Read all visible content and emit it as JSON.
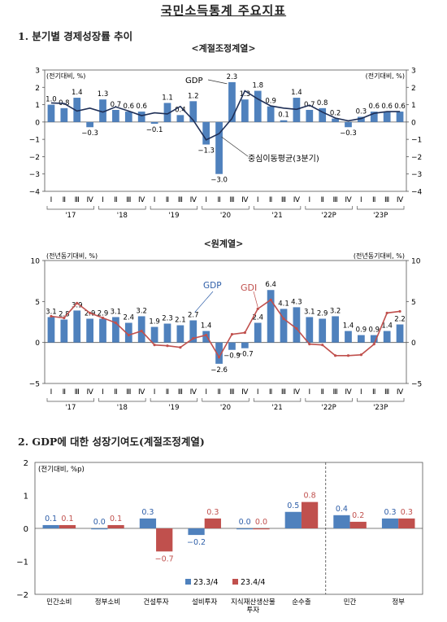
{
  "title": "국민소득통계 주요지표",
  "section1": "1. 분기별 경제성장률 추이",
  "section2": "2. GDP에 대한 성장기여도(계절조정계열)",
  "colors": {
    "bar": "#4f81bd",
    "bar2": "#c0504d",
    "line": "#1f2f56",
    "gdi": "#c0504d"
  },
  "chart_data": [
    {
      "type": "bar",
      "title": "<계절조정계열>",
      "ylabel_left": "(전기대비, %)",
      "ylabel_right": "(전기대비, %)",
      "ylim": [
        -4,
        3
      ],
      "yticks": [
        3,
        2,
        1,
        0,
        -1,
        -2,
        -3,
        -4
      ],
      "quarter_labels": [
        "Ⅰ",
        "Ⅱ",
        "Ⅲ",
        "Ⅳ",
        "Ⅰ",
        "Ⅱ",
        "Ⅲ",
        "Ⅳ",
        "Ⅰ",
        "Ⅱ",
        "Ⅲ",
        "Ⅳ",
        "Ⅰ",
        "Ⅱ",
        "Ⅲ",
        "Ⅳ",
        "Ⅰ",
        "Ⅱ",
        "Ⅲ",
        "Ⅳ",
        "Ⅰ",
        "Ⅱ",
        "Ⅲ",
        "Ⅳ",
        "Ⅰ",
        "Ⅱ",
        "Ⅲ",
        "Ⅳ"
      ],
      "year_labels": [
        "'17",
        "'18",
        "'19",
        "'20",
        "'21",
        "'22P",
        "'23P"
      ],
      "series": [
        {
          "name": "GDP",
          "type": "bar",
          "values": [
            1.0,
            0.8,
            1.4,
            -0.3,
            1.3,
            0.7,
            0.6,
            0.6,
            -0.1,
            1.1,
            0.4,
            1.2,
            -1.3,
            -3.0,
            2.3,
            1.3,
            1.8,
            0.9,
            0.1,
            1.4,
            0.7,
            0.8,
            0.2,
            -0.3,
            0.3,
            0.6,
            0.6,
            0.6
          ]
        },
        {
          "name": "중심이동평균(3분기)",
          "type": "line",
          "values": [
            1.1,
            1.07,
            0.63,
            0.8,
            0.57,
            0.87,
            0.63,
            0.37,
            0.53,
            0.47,
            0.9,
            0.1,
            -1.03,
            -0.67,
            0.2,
            1.8,
            1.33,
            0.93,
            0.8,
            0.73,
            0.97,
            0.57,
            0.23,
            0.07,
            0.2,
            0.5,
            0.6,
            0.6
          ]
        }
      ]
    },
    {
      "type": "bar",
      "title": "<원계열>",
      "ylabel_left": "(전년동기대비, %)",
      "ylabel_right": "(전년동기대비, %)",
      "ylim": [
        -5,
        10
      ],
      "yticks": [
        10,
        5,
        0,
        -5
      ],
      "quarter_labels": [
        "Ⅰ",
        "Ⅱ",
        "Ⅲ",
        "Ⅳ",
        "Ⅰ",
        "Ⅱ",
        "Ⅲ",
        "Ⅳ",
        "Ⅰ",
        "Ⅱ",
        "Ⅲ",
        "Ⅳ",
        "Ⅰ",
        "Ⅱ",
        "Ⅲ",
        "Ⅳ",
        "Ⅰ",
        "Ⅱ",
        "Ⅲ",
        "Ⅳ",
        "Ⅰ",
        "Ⅱ",
        "Ⅲ",
        "Ⅳ",
        "Ⅰ",
        "Ⅱ",
        "Ⅲ",
        "Ⅳ"
      ],
      "year_labels": [
        "'17",
        "'18",
        "'19",
        "'20",
        "'21",
        "'22P",
        "'23P"
      ],
      "series": [
        {
          "name": "GDP",
          "type": "bar",
          "values": [
            3.1,
            2.8,
            3.9,
            2.9,
            2.9,
            3.1,
            2.4,
            3.2,
            1.9,
            2.3,
            2.1,
            2.7,
            1.4,
            -2.6,
            -0.9,
            -0.7,
            2.4,
            6.4,
            4.1,
            4.3,
            3.1,
            2.9,
            3.2,
            1.4,
            0.9,
            0.9,
            1.4,
            2.2
          ]
        },
        {
          "name": "GDI",
          "type": "line",
          "values": [
            3.2,
            3.0,
            4.8,
            3.6,
            3.0,
            2.4,
            0.9,
            1.4,
            -0.3,
            -0.4,
            -0.6,
            0.5,
            0.9,
            -1.8,
            1.0,
            1.2,
            4.1,
            5.2,
            2.9,
            1.7,
            -0.2,
            -0.3,
            -1.6,
            -1.6,
            -1.5,
            -0.2,
            3.6,
            3.8
          ]
        }
      ]
    },
    {
      "type": "bar",
      "ylabel": "(전기대비, %p)",
      "ylim": [
        -2,
        2
      ],
      "yticks": [
        2,
        1,
        0,
        -1,
        -2
      ],
      "categories": [
        "민간소비",
        "정부소비",
        "건설투자",
        "설비투자",
        "지식재산생산물 투자",
        "순수출",
        "민간",
        "정부"
      ],
      "series": [
        {
          "name": "23.3/4",
          "values": [
            0.1,
            0.0,
            0.3,
            -0.2,
            0.0,
            0.5,
            0.4,
            0.3
          ]
        },
        {
          "name": "23.4/4",
          "values": [
            0.1,
            0.1,
            -0.7,
            0.3,
            0.0,
            0.8,
            0.2,
            0.3
          ]
        }
      ]
    }
  ]
}
